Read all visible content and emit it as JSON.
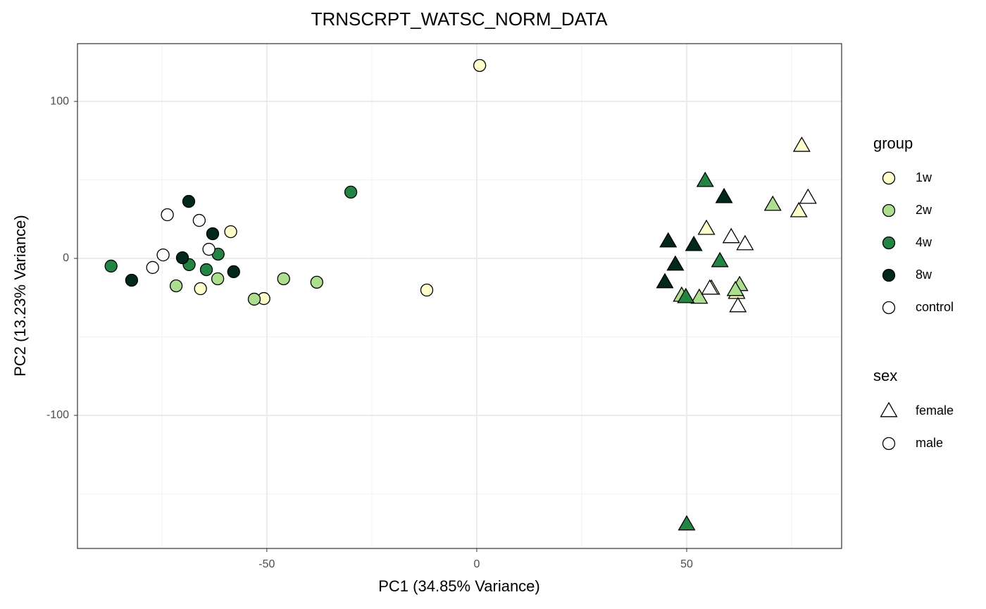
{
  "chart_data": {
    "type": "scatter",
    "title": "TRNSCRPT_WATSC_NORM_DATA",
    "x_label": "PC1 (34.85% Variance)",
    "y_label": "PC2 (13.23% Variance)",
    "xlim": [
      -95.1,
      86.9
    ],
    "ylim": [
      -184.8,
      136.8
    ],
    "xticks": [
      -50,
      0,
      50
    ],
    "yticks": [
      -100,
      0,
      100
    ],
    "x_minor_ticks": [
      -75,
      -25,
      25,
      75
    ],
    "y_minor_ticks": [
      -150,
      -50,
      50
    ],
    "grid": true,
    "legend_title": "group",
    "shape_legend": {
      "title": "sex",
      "labels": [
        "female",
        "male"
      ],
      "markers": [
        "triangle",
        "circle"
      ]
    },
    "series": [
      {
        "name": "1w",
        "color": "#ffffcc",
        "x": [
          0.7,
          -58.6,
          -65.8,
          -50.7,
          -11.9,
          77.4,
          76.7,
          54.7,
          55.9,
          61.9
        ],
        "y": [
          122.9,
          17.0,
          -19.3,
          -25.6,
          -20.2,
          71.7,
          30.0,
          18.8,
          -19.3,
          -22.0
        ],
        "sex": [
          "male",
          "male",
          "male",
          "male",
          "male",
          "female",
          "female",
          "female",
          "female",
          "female"
        ]
      },
      {
        "name": "2w",
        "color": "#addd8e",
        "x": [
          -71.6,
          -61.7,
          -53.0,
          -46.0,
          -38.1,
          70.5,
          62.6,
          48.8,
          53.0,
          61.6
        ],
        "y": [
          -17.5,
          -13.0,
          -26.0,
          -13.0,
          -15.2,
          34.1,
          -17.0,
          -23.8,
          -25.1,
          -20.2
        ],
        "sex": [
          "male",
          "male",
          "male",
          "male",
          "male",
          "female",
          "female",
          "female",
          "female",
          "female"
        ]
      },
      {
        "name": "4w",
        "color": "#238443",
        "x": [
          -87.1,
          -68.5,
          -64.4,
          -61.6,
          -30.0,
          54.4,
          57.9,
          50.0,
          49.8
        ],
        "y": [
          -4.9,
          -4.0,
          -7.2,
          2.7,
          42.2,
          49.3,
          -1.8,
          -169.5,
          -24.7
        ],
        "sex": [
          "male",
          "male",
          "male",
          "male",
          "male",
          "female",
          "female",
          "female",
          "female"
        ]
      },
      {
        "name": "8w",
        "color": "#00291a",
        "x": [
          -82.2,
          -68.6,
          -70.1,
          -62.9,
          -57.9,
          45.6,
          58.9,
          51.7,
          47.3,
          44.8
        ],
        "y": [
          -13.9,
          36.3,
          0.4,
          15.7,
          -8.5,
          10.8,
          39.0,
          8.5,
          -4.0,
          -15.2
        ],
        "sex": [
          "male",
          "male",
          "male",
          "male",
          "male",
          "female",
          "female",
          "female",
          "female",
          "female"
        ]
      },
      {
        "name": "control",
        "color": "#ffffff",
        "x": [
          -73.7,
          -66.1,
          -74.7,
          -77.2,
          -63.8,
          78.9,
          60.6,
          63.9,
          62.2,
          55.5
        ],
        "y": [
          27.8,
          24.2,
          2.2,
          -5.8,
          5.8,
          38.6,
          13.5,
          9.0,
          -30.5,
          -19.3
        ],
        "sex": [
          "male",
          "male",
          "male",
          "male",
          "male",
          "female",
          "female",
          "female",
          "female",
          "female"
        ]
      }
    ]
  }
}
